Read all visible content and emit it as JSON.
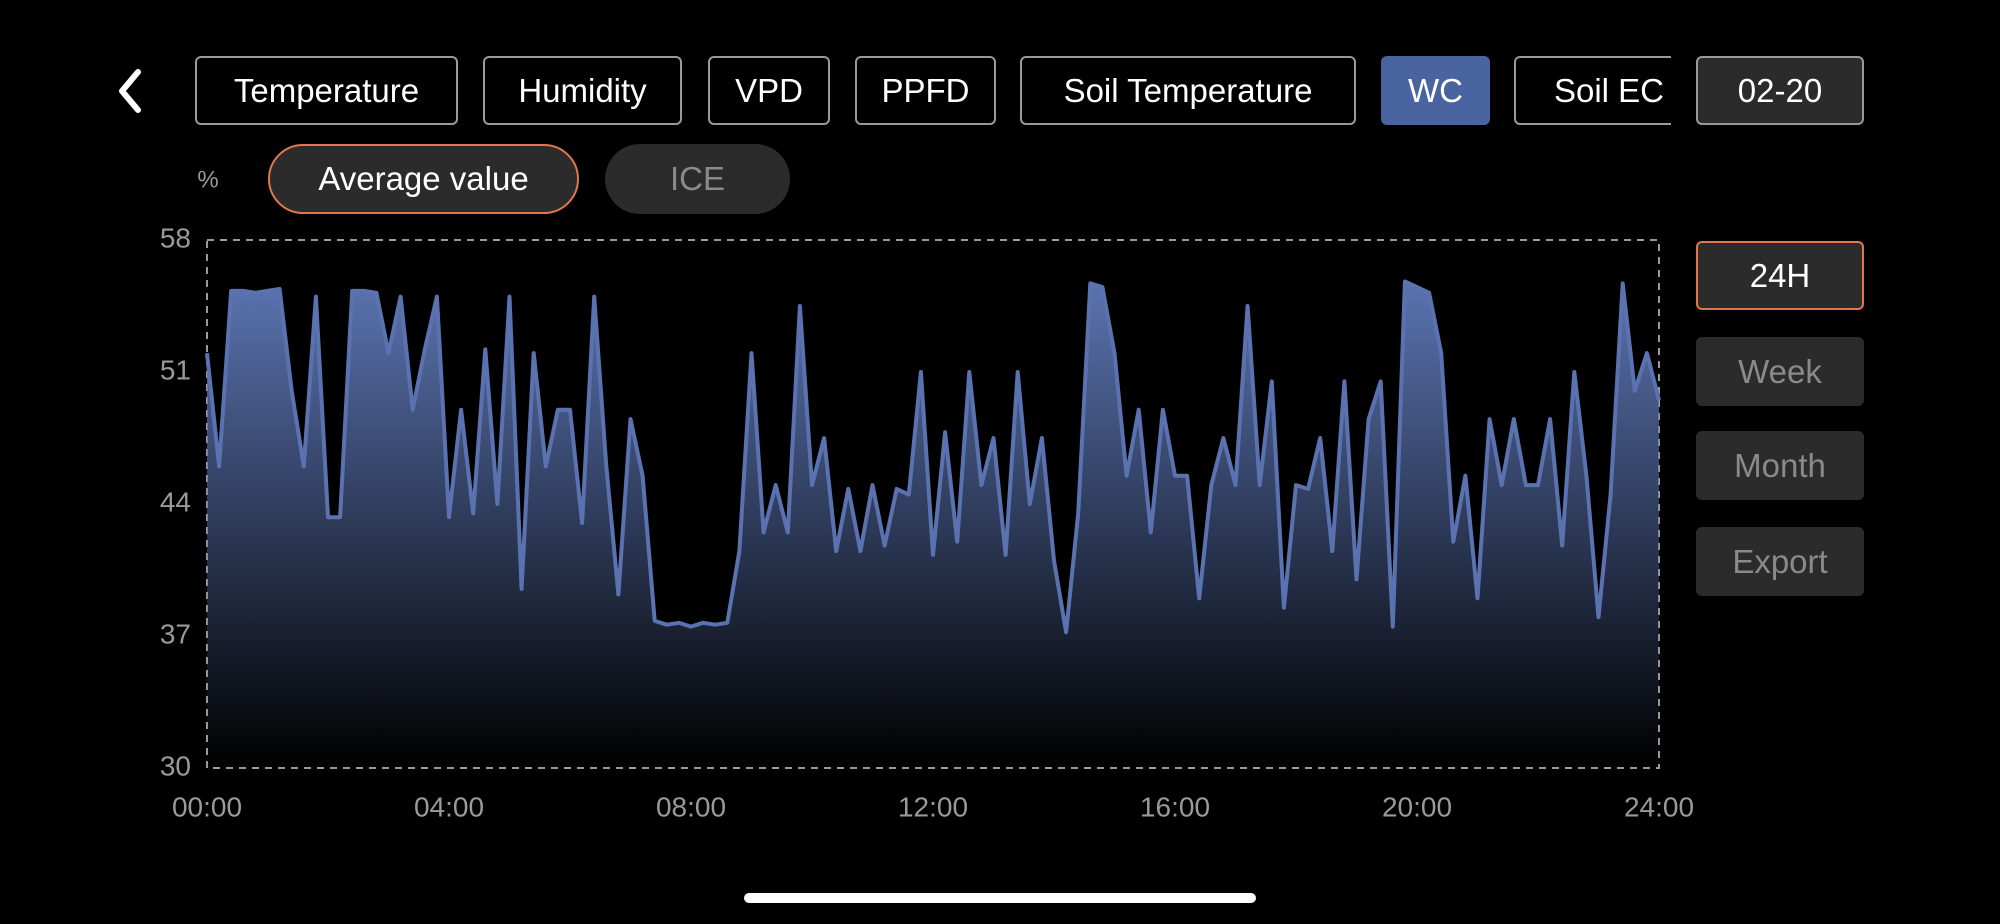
{
  "tabs": [
    "Temperature",
    "Humidity",
    "VPD",
    "PPFD",
    "Soil Temperature",
    "WC",
    "Soil EC"
  ],
  "date": "02-20",
  "toggles": [
    "Average value",
    "ICE"
  ],
  "ranges": [
    "24H",
    "Week",
    "Month",
    "Export"
  ],
  "chart_data": {
    "type": "area",
    "y_label": "%",
    "color": "#5a73b0",
    "x": [
      0,
      0.2,
      0.4,
      0.6,
      0.8,
      1.0,
      1.2,
      1.4,
      1.6,
      1.8,
      2.0,
      2.2,
      2.4,
      2.6,
      2.8,
      3.0,
      3.2,
      3.4,
      3.6,
      3.8,
      4.0,
      4.2,
      4.4,
      4.6,
      4.8,
      5.0,
      5.2,
      5.4,
      5.6,
      5.8,
      6.0,
      6.2,
      6.4,
      6.6,
      6.8,
      7.0,
      7.2,
      7.4,
      7.6,
      7.8,
      8.0,
      8.2,
      8.4,
      8.6,
      8.8,
      9.0,
      9.2,
      9.4,
      9.6,
      9.8,
      10.0,
      10.2,
      10.4,
      10.6,
      10.8,
      11.0,
      11.2,
      11.4,
      11.6,
      11.8,
      12.0,
      12.2,
      12.4,
      12.6,
      12.8,
      13.0,
      13.2,
      13.4,
      13.6,
      13.8,
      14.0,
      14.2,
      14.4,
      14.6,
      14.8,
      15.0,
      15.2,
      15.4,
      15.6,
      15.8,
      16.0,
      16.2,
      16.4,
      16.6,
      16.8,
      17.0,
      17.2,
      17.4,
      17.6,
      17.8,
      18.0,
      18.2,
      18.4,
      18.6,
      18.8,
      19.0,
      19.2,
      19.4,
      19.6,
      19.8,
      20.0,
      20.2,
      20.4,
      20.6,
      20.8,
      21.0,
      21.2,
      21.4,
      21.6,
      21.8,
      22.0,
      22.2,
      22.4,
      22.6,
      22.8,
      23.0,
      23.2,
      23.4,
      23.6,
      23.8,
      24.0
    ],
    "values": [
      52,
      46,
      55.3,
      55.3,
      55.2,
      55.3,
      55.4,
      50,
      46,
      55,
      43.3,
      43.3,
      55.3,
      55.3,
      55.2,
      52,
      55,
      49,
      52.2,
      55,
      43.3,
      49,
      43.5,
      52.2,
      44,
      55,
      39.5,
      52,
      46,
      49,
      49,
      43,
      55,
      46,
      39.2,
      48.5,
      45.5,
      37.8,
      37.6,
      37.7,
      37.5,
      37.7,
      37.6,
      37.7,
      41.5,
      52,
      42.5,
      45,
      42.5,
      54.5,
      45,
      47.5,
      41.5,
      44.8,
      41.5,
      45,
      41.8,
      44.8,
      44.5,
      51,
      41.3,
      47.8,
      42,
      51,
      45,
      47.5,
      41.3,
      51,
      44,
      47.5,
      41,
      37.2,
      43.5,
      55.7,
      55.5,
      52,
      45.5,
      49,
      42.5,
      49,
      45.5,
      45.5,
      39,
      45,
      47.5,
      45,
      54.5,
      45,
      50.5,
      38.5,
      45,
      44.8,
      47.5,
      41.5,
      50.5,
      40,
      48.5,
      50.5,
      37.5,
      55.8,
      55.5,
      55.2,
      52,
      42,
      45.5,
      39,
      48.5,
      45,
      48.5,
      45,
      45,
      48.5,
      41.8,
      51,
      45.5,
      38,
      44.5,
      55.7,
      50,
      52,
      49.5
    ],
    "xlim": [
      0,
      24
    ],
    "xticks": [
      {
        "value": 0,
        "label": "00:00"
      },
      {
        "value": 4,
        "label": "04:00"
      },
      {
        "value": 8,
        "label": "08:00"
      },
      {
        "value": 12,
        "label": "12:00"
      },
      {
        "value": 16,
        "label": "16:00"
      },
      {
        "value": 20,
        "label": "20:00"
      },
      {
        "value": 24,
        "label": "24:00"
      }
    ],
    "ylim": [
      30,
      58
    ],
    "yticks": [
      30,
      37,
      44,
      51,
      58
    ]
  }
}
